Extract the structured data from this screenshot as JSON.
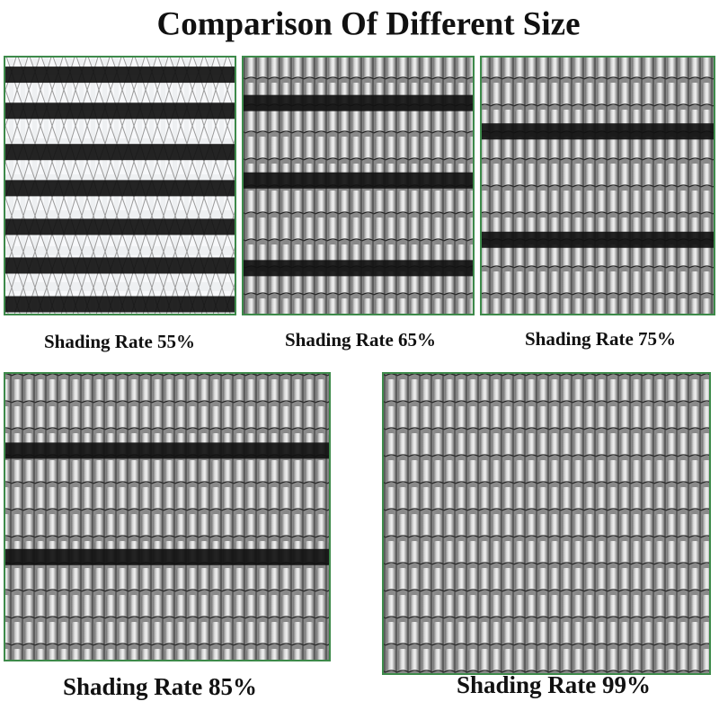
{
  "header": {
    "title": "Comparison Of Different Size"
  },
  "panels": [
    {
      "label": "Shading Rate 55%"
    },
    {
      "label": "Shading Rate 65%"
    },
    {
      "label": "Shading Rate 75%"
    },
    {
      "label": "Shading Rate 85%"
    },
    {
      "label": "Shading Rate 99%"
    }
  ]
}
